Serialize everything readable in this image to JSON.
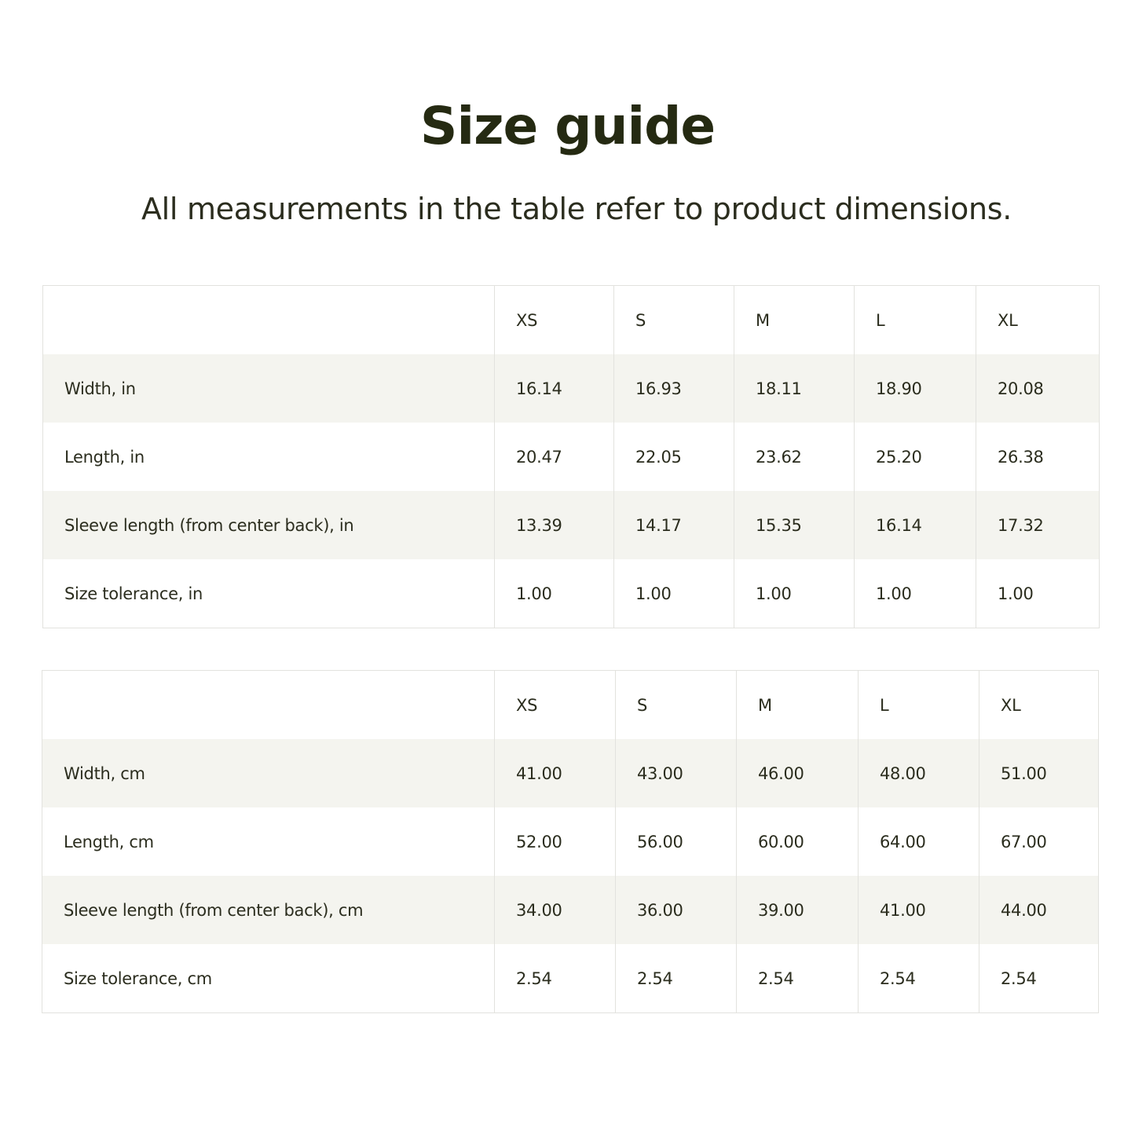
{
  "title": "Size guide",
  "subtitle": "All measurements in the table refer to product dimensions.",
  "tables": [
    {
      "headers": [
        "",
        "XS",
        "S",
        "M",
        "L",
        "XL"
      ],
      "rows": [
        {
          "label": "Width, in",
          "values": [
            "16.14",
            "16.93",
            "18.11",
            "18.90",
            "20.08"
          ]
        },
        {
          "label": "Length, in",
          "values": [
            "20.47",
            "22.05",
            "23.62",
            "25.20",
            "26.38"
          ]
        },
        {
          "label": "Sleeve length (from center back), in",
          "values": [
            "13.39",
            "14.17",
            "15.35",
            "16.14",
            "17.32"
          ]
        },
        {
          "label": "Size tolerance, in",
          "values": [
            "1.00",
            "1.00",
            "1.00",
            "1.00",
            "1.00"
          ]
        }
      ]
    },
    {
      "headers": [
        "",
        "XS",
        "S",
        "M",
        "L",
        "XL"
      ],
      "rows": [
        {
          "label": "Width, cm",
          "values": [
            "41.00",
            "43.00",
            "46.00",
            "48.00",
            "51.00"
          ]
        },
        {
          "label": "Length, cm",
          "values": [
            "52.00",
            "56.00",
            "60.00",
            "64.00",
            "67.00"
          ]
        },
        {
          "label": "Sleeve length (from center back), cm",
          "values": [
            "34.00",
            "36.00",
            "39.00",
            "41.00",
            "44.00"
          ]
        },
        {
          "label": "Size tolerance, cm",
          "values": [
            "2.54",
            "2.54",
            "2.54",
            "2.54",
            "2.54"
          ]
        }
      ]
    }
  ],
  "colors": {
    "text": "#2b2d1e",
    "stripe": "#f4f4ef",
    "border": "#e2e2de"
  }
}
